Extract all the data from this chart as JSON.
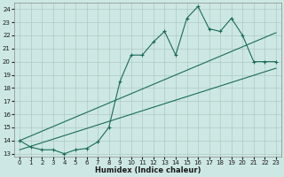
{
  "xlabel": "Humidex (Indice chaleur)",
  "bg_color": "#cde8e4",
  "grid_color": "#b0c8c4",
  "line_color": "#1a6b5a",
  "xlim": [
    -0.5,
    23.5
  ],
  "ylim": [
    12.8,
    24.5
  ],
  "xticks": [
    0,
    1,
    2,
    3,
    4,
    5,
    6,
    7,
    8,
    9,
    10,
    11,
    12,
    13,
    14,
    15,
    16,
    17,
    18,
    19,
    20,
    21,
    22,
    23
  ],
  "yticks": [
    13,
    14,
    15,
    16,
    17,
    18,
    19,
    20,
    21,
    22,
    23,
    24
  ],
  "series1_x": [
    0,
    1,
    2,
    3,
    4,
    5,
    6,
    7,
    8,
    9,
    10,
    11,
    12,
    13,
    14,
    15,
    16,
    17,
    18,
    19,
    20,
    21,
    22,
    23
  ],
  "series1_y": [
    14.0,
    13.5,
    13.3,
    13.3,
    13.0,
    13.3,
    13.4,
    13.9,
    15.0,
    18.5,
    20.5,
    20.5,
    21.5,
    22.3,
    20.5,
    23.3,
    24.2,
    22.5,
    22.3,
    23.3,
    22.0,
    20.0,
    20.0,
    20.0
  ],
  "series2_x": [
    0,
    23
  ],
  "series2_y": [
    14.0,
    22.2
  ],
  "series3_x": [
    0,
    23
  ],
  "series3_y": [
    13.3,
    19.5
  ]
}
